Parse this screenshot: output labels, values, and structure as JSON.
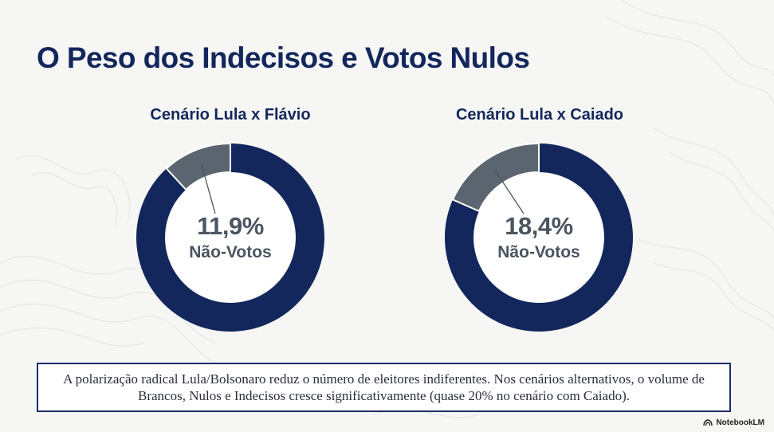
{
  "title": "O Peso dos Indecisos e Votos Nulos",
  "chart_data": [
    {
      "type": "pie",
      "title": "Cenário Lula x Flávio",
      "slices": [
        {
          "label": "Não-Votos",
          "value": 11.9
        },
        {
          "label": "",
          "value": 88.1
        }
      ],
      "center_value": "11,9%",
      "center_label": "Não-Votos"
    },
    {
      "type": "pie",
      "title": "Cenário Lula x Caiado",
      "slices": [
        {
          "label": "Não-Votos",
          "value": 18.4
        },
        {
          "label": "",
          "value": 81.6
        }
      ],
      "center_value": "18,4%",
      "center_label": "Não-Votos"
    }
  ],
  "colors": {
    "main": "#13275c",
    "highlight": "#5b6570",
    "leader": "#4a5560"
  },
  "note": "A polarização radical Lula/Bolsonaro reduz o número de eleitores indiferentes. Nos cenários alternativos, o volume de Brancos, Nulos e Indecisos cresce significativamente (quase 20% no cenário com Caiado).",
  "brand": "NotebookLM"
}
